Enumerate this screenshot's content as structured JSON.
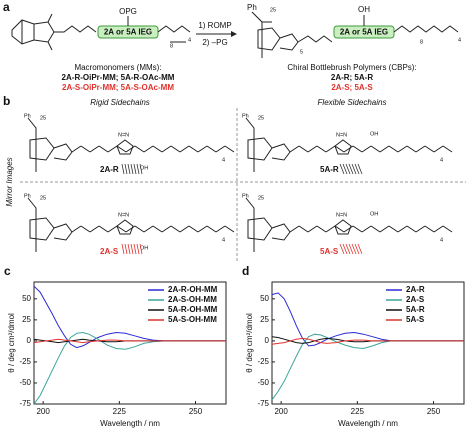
{
  "panel_a": {
    "label": "a",
    "protecting_group": "OPG",
    "ieg_box": "2A or 5A IEG",
    "step_1": "1) ROMP",
    "step_2": "2) –PG",
    "hydroxyl": "OH",
    "end_group": "Ph",
    "subscripts": [
      "25",
      "5",
      "8",
      "4"
    ],
    "mm_title": "Macromonomers (MMs):",
    "mm_r": "2A-R-OiPr-MM; 5A-R-OAc-MM",
    "mm_s": "2A-S-OiPr-MM; 5A-S-OAc-MM",
    "cbp_title": "Chiral Bottlebrush Polymers (CBPs):",
    "cbp_r": "2A-R; 5A-R",
    "cbp_s": "2A-S; 5A-S"
  },
  "panel_b": {
    "label": "b",
    "rigid": "Rigid Sidechains",
    "flexible": "Flexible Sidechains",
    "mirror": "Mirror Images",
    "triazole": "N=N",
    "hydroxyl": "OH",
    "names": [
      "2A-R",
      "5A-R",
      "2A-S",
      "5A-S"
    ]
  },
  "chart_data": [
    {
      "type": "line",
      "panel": "c",
      "xlabel": "Wavelength / nm",
      "ylabel": "θ / deg cm²/dmol",
      "xlim": [
        197,
        260
      ],
      "xticks": [
        200,
        225,
        250
      ],
      "ylim": [
        -75,
        70
      ],
      "yticks": [
        -75,
        -50,
        -25,
        0,
        25,
        50
      ],
      "legend": "upper right",
      "x": [
        197,
        199,
        201,
        203,
        205,
        207,
        209,
        211,
        213,
        215,
        218,
        221,
        224,
        227,
        230,
        233,
        236,
        240,
        245,
        250,
        255,
        260
      ],
      "series": [
        {
          "name": "2A-R-OH-MM",
          "color": "#2a2ad8",
          "values": [
            65,
            58,
            45,
            32,
            18,
            6,
            -4,
            -8,
            -6,
            -2,
            4,
            8,
            10,
            9,
            6,
            3,
            1,
            0,
            0,
            0,
            0,
            0
          ]
        },
        {
          "name": "2A-S-OH-MM",
          "color": "#3aa59c",
          "values": [
            -75,
            -65,
            -50,
            -35,
            -20,
            -6,
            4,
            9,
            10,
            8,
            2,
            -5,
            -9,
            -10,
            -7,
            -3,
            -1,
            0,
            0,
            0,
            0,
            0
          ]
        },
        {
          "name": "5A-R-OH-MM",
          "color": "#111111",
          "values": [
            2,
            1,
            0,
            -1,
            -2,
            -1,
            0,
            1,
            2,
            1,
            0,
            -1,
            -1,
            0,
            0,
            0,
            0,
            0,
            0,
            0,
            0,
            0
          ]
        },
        {
          "name": "5A-S-OH-MM",
          "color": "#e0322d",
          "values": [
            -2,
            -1,
            0,
            1,
            2,
            1,
            0,
            -1,
            -2,
            -1,
            0,
            1,
            1,
            0,
            0,
            0,
            0,
            0,
            0,
            0,
            0,
            0
          ]
        }
      ]
    },
    {
      "type": "line",
      "panel": "d",
      "xlabel": "Wavelength / nm",
      "ylabel": "θ / deg cm²/dmol",
      "xlim": [
        197,
        260
      ],
      "xticks": [
        200,
        225,
        250
      ],
      "ylim": [
        -75,
        70
      ],
      "yticks": [
        -75,
        -50,
        -25,
        0,
        25,
        50
      ],
      "legend": "upper right",
      "x": [
        197,
        199,
        201,
        203,
        205,
        207,
        209,
        211,
        213,
        215,
        218,
        221,
        224,
        227,
        230,
        233,
        236,
        240,
        245,
        250,
        255,
        260
      ],
      "series": [
        {
          "name": "2A-R",
          "color": "#2a2ad8",
          "values": [
            55,
            57,
            50,
            35,
            18,
            3,
            -6,
            -5,
            -2,
            2,
            6,
            9,
            10,
            8,
            5,
            2,
            0,
            0,
            0,
            0,
            0,
            0
          ]
        },
        {
          "name": "2A-S",
          "color": "#3aa59c",
          "values": [
            -70,
            -60,
            -48,
            -33,
            -18,
            -4,
            5,
            8,
            7,
            4,
            -1,
            -5,
            -8,
            -9,
            -6,
            -2,
            0,
            0,
            0,
            0,
            0,
            0
          ]
        },
        {
          "name": "5A-R",
          "color": "#111111",
          "values": [
            5,
            4,
            2,
            0,
            -2,
            -3,
            -2,
            0,
            2,
            3,
            2,
            0,
            -1,
            -1,
            0,
            0,
            0,
            0,
            0,
            0,
            0,
            0
          ]
        },
        {
          "name": "5A-S",
          "color": "#e0322d",
          "values": [
            -4,
            -3,
            -2,
            0,
            2,
            3,
            2,
            0,
            -2,
            -3,
            -2,
            0,
            1,
            1,
            0,
            0,
            0,
            0,
            0,
            0,
            0,
            0
          ]
        }
      ]
    }
  ]
}
